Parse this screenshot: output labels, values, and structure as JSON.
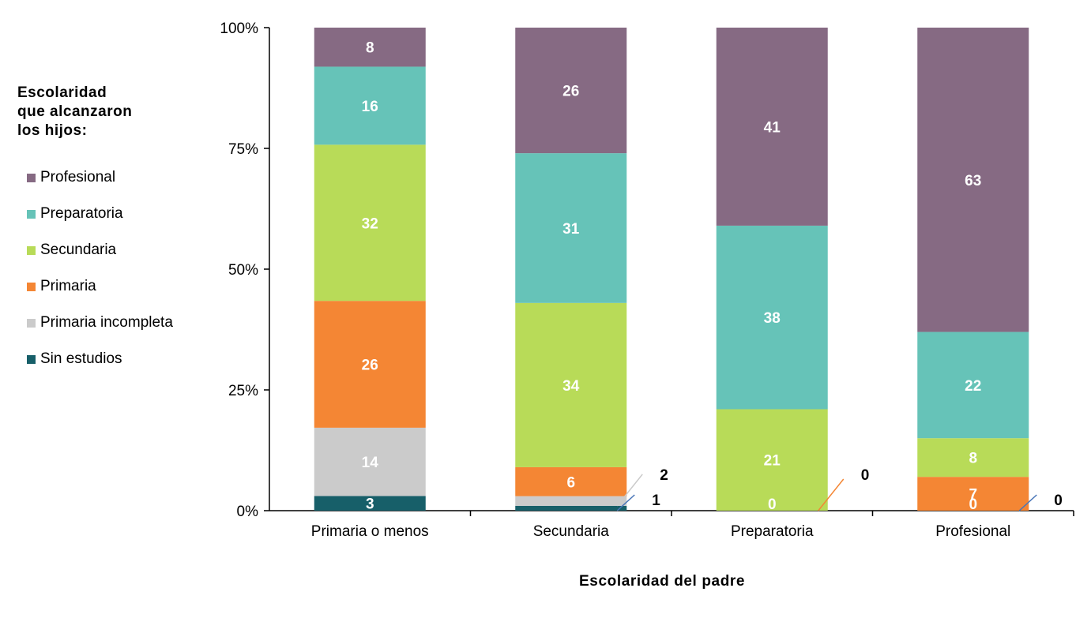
{
  "legend": {
    "title": "Escolaridad\nque alcanzaron\nlos hijos:",
    "items": [
      {
        "label": "Profesional",
        "color": "#866a83"
      },
      {
        "label": "Preparatoria",
        "color": "#66c3b8"
      },
      {
        "label": "Secundaria",
        "color": "#b8db58"
      },
      {
        "label": "Primaria",
        "color": "#f48634"
      },
      {
        "label": "Primaria incompleta",
        "color": "#cbcbcb"
      },
      {
        "label": "Sin estudios",
        "color": "#175f69"
      }
    ]
  },
  "chart_data": {
    "type": "bar",
    "stacked": true,
    "percent_stacked": true,
    "categories": [
      "Primaria o menos",
      "Secundaria",
      "Preparatoria",
      "Profesional"
    ],
    "y_ticks": [
      "0%",
      "25%",
      "50%",
      "75%",
      "100%"
    ],
    "ylim": [
      0,
      100
    ],
    "xlabel": "Escolaridad del padre",
    "ylabel": "",
    "legend_placement": "left",
    "grid": false,
    "series": [
      {
        "name": "Sin estudios",
        "color": "#175f69",
        "values": [
          3,
          1,
          0,
          0
        ],
        "labels": [
          "3",
          "1",
          "",
          "0"
        ]
      },
      {
        "name": "Primaria incompleta",
        "color": "#cbcbcb",
        "values": [
          14,
          2,
          0,
          0
        ],
        "labels": [
          "14",
          "2",
          "0",
          "0"
        ]
      },
      {
        "name": "Primaria",
        "color": "#f48634",
        "values": [
          26,
          6,
          0,
          7
        ],
        "labels": [
          "26",
          "6",
          "0",
          "7"
        ]
      },
      {
        "name": "Secundaria",
        "color": "#b8db58",
        "values": [
          32,
          34,
          21,
          8
        ],
        "labels": [
          "32",
          "34",
          "21",
          "8"
        ]
      },
      {
        "name": "Preparatoria",
        "color": "#66c3b8",
        "values": [
          16,
          31,
          38,
          22
        ],
        "labels": [
          "16",
          "31",
          "38",
          "22"
        ]
      },
      {
        "name": "Profesional",
        "color": "#866a83",
        "values": [
          8,
          26,
          41,
          63
        ],
        "labels": [
          "8",
          "26",
          "41",
          "63"
        ]
      }
    ]
  }
}
